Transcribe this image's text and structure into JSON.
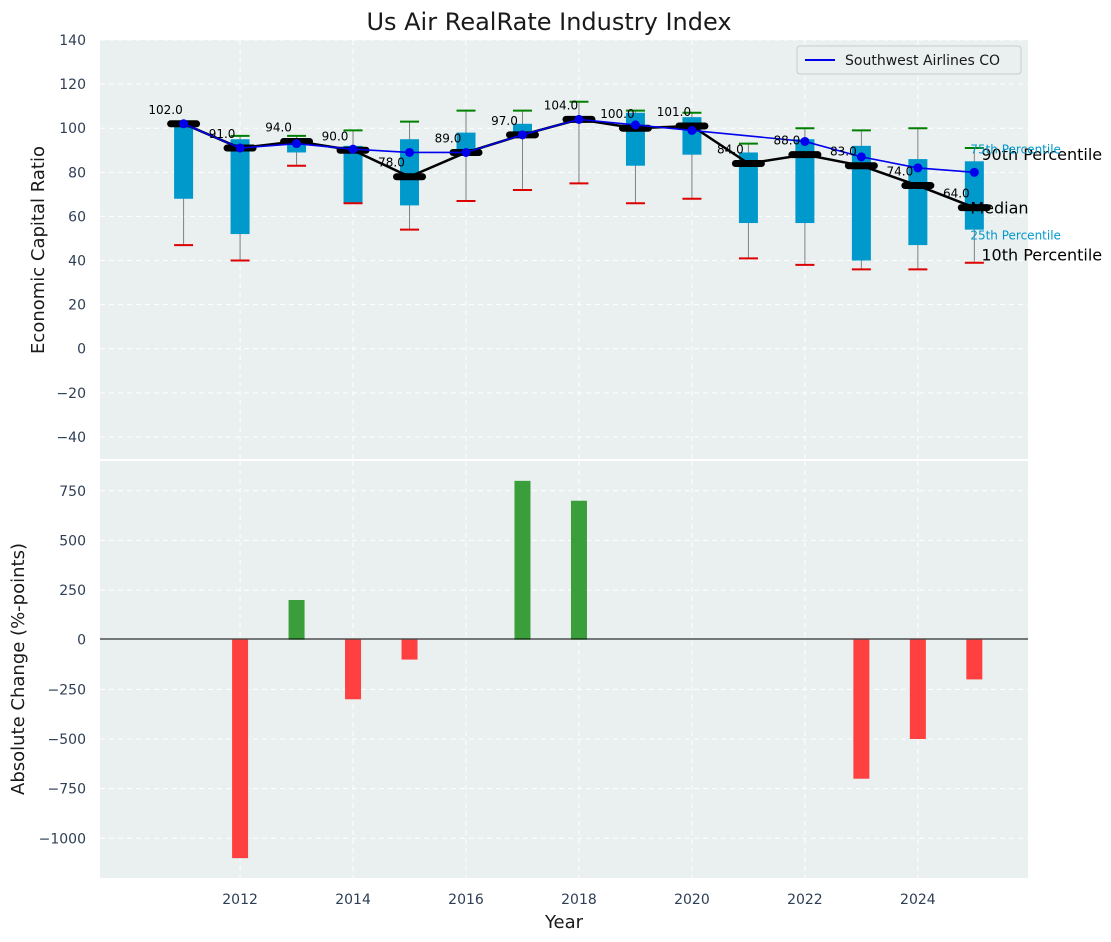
{
  "chart_data": [
    {
      "type": "box",
      "title": "Us Air RealRate Industry Index",
      "xlabel": "",
      "ylabel": "Economic Capital Ratio",
      "ylim": [
        -50,
        140
      ],
      "yticks": [
        -40,
        -20,
        0,
        20,
        40,
        60,
        80,
        100,
        120,
        140
      ],
      "years": [
        2011,
        2012,
        2013,
        2014,
        2015,
        2016,
        2017,
        2018,
        2019,
        2020,
        2021,
        2022,
        2023,
        2024,
        2025
      ],
      "median": [
        102,
        91,
        94,
        90,
        78,
        89,
        97,
        104,
        100,
        101,
        84,
        88,
        83,
        74,
        64
      ],
      "median_labels": [
        "102.0",
        "91.0",
        "94.0",
        "90.0",
        "78.0",
        "89.0",
        "97.0",
        "104.0",
        "100.0",
        "101.0",
        "84.0",
        "88.0",
        "83.0",
        "74.0",
        "64.0"
      ],
      "p25": [
        68,
        52,
        89,
        66,
        65,
        89,
        97,
        103,
        83,
        88,
        57,
        57,
        40,
        47,
        54
      ],
      "p75": [
        102,
        95,
        94,
        92,
        95,
        98,
        102,
        104,
        107,
        105,
        89,
        95,
        92,
        86,
        85
      ],
      "p10": [
        47,
        40,
        83,
        66,
        54,
        67,
        72,
        75,
        66,
        68,
        41,
        38,
        36,
        36,
        39
      ],
      "p90": [
        null,
        96.5,
        96.5,
        99,
        103,
        108,
        108,
        112,
        108,
        107,
        93,
        100,
        99,
        100,
        91
      ],
      "series": [
        {
          "name": "Southwest Airlines CO",
          "color": "#0000ee",
          "values": [
            102,
            91,
            93,
            90.5,
            89,
            89,
            97,
            104,
            101.5,
            99,
            null,
            94,
            87,
            82,
            80
          ]
        }
      ],
      "legend": [
        "Southwest Airlines CO"
      ],
      "legend_position": "top-right",
      "annotations": [
        "90th Percentile",
        "75th Percentile",
        "Median",
        "25th Percentile",
        "10th Percentile"
      ],
      "colors": {
        "box": "#0099cc",
        "p90_cap": "#008000",
        "p10_cap": "#dd0000",
        "median": "#000000",
        "whisker": "#808080",
        "plot_bg": "#eaeff0"
      }
    },
    {
      "type": "bar",
      "xlabel": "Year",
      "ylabel": "Absolute Change (%-points)",
      "ylim": [
        -1200,
        900
      ],
      "yticks": [
        -1000,
        -750,
        -500,
        -250,
        0,
        250,
        500,
        750
      ],
      "xticks": [
        2012,
        2014,
        2016,
        2018,
        2020,
        2022,
        2024
      ],
      "xlim": [
        2009.52,
        2025.95
      ],
      "years": [
        2011,
        2012,
        2013,
        2014,
        2015,
        2016,
        2017,
        2018,
        2019,
        2020,
        2021,
        2022,
        2023,
        2024,
        2025
      ],
      "values": [
        0,
        -1100,
        200,
        -300,
        -100,
        0,
        800,
        700,
        0,
        0,
        0,
        0,
        -700,
        -500,
        -200
      ],
      "colors": {
        "positive": "#3a9e3a",
        "negative": "#ff4040"
      }
    }
  ]
}
